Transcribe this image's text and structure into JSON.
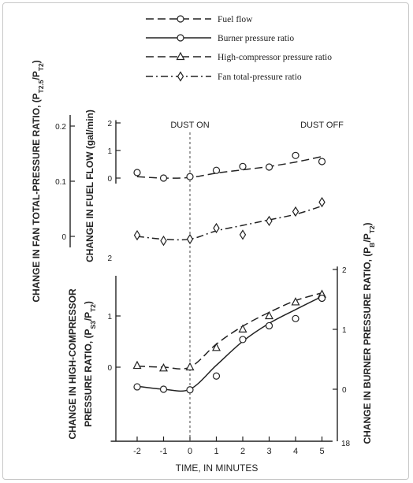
{
  "chart_data": {
    "type": "line",
    "title": "",
    "xlabel": "TIME, IN MINUTES",
    "xlim": [
      -3,
      5.4
    ],
    "x_ticks": [
      -2,
      -1,
      0,
      1,
      2,
      3,
      4,
      5
    ],
    "x_tick_labels": [
      "-2",
      "-1",
      "0",
      "1",
      "2",
      "3",
      "4",
      "5"
    ],
    "annotations": [
      {
        "text": "DUST ON",
        "x": 0
      },
      {
        "text": "DUST OFF",
        "x": 5
      }
    ],
    "legend": {
      "placement": "top",
      "entries": [
        "Fuel flow",
        "Burner pressure ratio",
        "High-compressor pressure ratio",
        "Fan total-pressure ratio"
      ]
    },
    "axes": {
      "fan": {
        "label": "CHANGE IN FAN TOTAL-PRESSURE RATIO, (P",
        "label_sub": "T2.5",
        "label_mid": "/P",
        "label_sub2": "T2",
        "label_end": ")",
        "ticks": [
          0,
          0.1,
          0.2
        ],
        "tick_labels": [
          "0",
          "0.1",
          "0.2"
        ]
      },
      "fuel": {
        "label": "CHANGE IN FUEL FLOW (gal/min)",
        "ticks": [
          0,
          1,
          2
        ],
        "tick_labels": [
          "0",
          "1",
          "2"
        ],
        "extra_label": "2"
      },
      "high_compressor": {
        "label_line1": "CHANGE IN HIGH-COMPRESSOR",
        "label_line2": "PRESSURE RATIO, (P",
        "label_sub": "S3",
        "label_mid": "/P",
        "label_sub2": "T2",
        "label_end": ")",
        "ticks": [
          0,
          1
        ],
        "tick_labels": [
          "0",
          "1"
        ]
      },
      "burner": {
        "label": "CHANGE IN BURNER PRESSURE RATIO, (P",
        "label_sub": "B",
        "label_mid": "/P",
        "label_sub2": "T2",
        "label_end": ")",
        "ticks": [
          0,
          1,
          2
        ],
        "tick_labels": [
          "0",
          "1",
          "2"
        ],
        "extra_label": "18"
      }
    },
    "series": [
      {
        "name": "Fuel flow",
        "axis": "fuel",
        "marker": "circle",
        "line": "dash",
        "curve_x": [
          -2,
          -1,
          0,
          1,
          2,
          3,
          4,
          5
        ],
        "curve_y": [
          0.05,
          0.0,
          0.02,
          0.18,
          0.3,
          0.42,
          0.58,
          0.78
        ],
        "points_x": [
          -2,
          -1,
          0,
          1,
          2,
          3,
          4,
          5
        ],
        "points_y": [
          0.2,
          0.0,
          0.05,
          0.28,
          0.42,
          0.4,
          0.82,
          0.6
        ]
      },
      {
        "name": "Fan total-pressure ratio",
        "axis": "fan",
        "marker": "diamond",
        "line": "dashdot",
        "curve_x": [
          -2,
          -1,
          0,
          1,
          2,
          3,
          4,
          5
        ],
        "curve_y": [
          0.0,
          -0.005,
          -0.005,
          0.01,
          0.02,
          0.03,
          0.04,
          0.055
        ],
        "points_x": [
          -2,
          -1,
          0,
          1,
          2,
          3,
          4,
          5
        ],
        "points_y": [
          0.002,
          -0.008,
          -0.005,
          0.015,
          0.003,
          0.028,
          0.045,
          0.062
        ]
      },
      {
        "name": "High-compressor pressure ratio",
        "axis": "high_compressor",
        "marker": "triangle",
        "line": "dash",
        "curve_x": [
          -2,
          -1,
          0,
          1,
          2,
          3,
          4,
          5
        ],
        "curve_y": [
          0.02,
          0.0,
          0.0,
          0.45,
          0.8,
          1.07,
          1.3,
          1.45
        ],
        "points_x": [
          -2,
          -1,
          0,
          1,
          2,
          3,
          4,
          5
        ],
        "points_y": [
          0.03,
          -0.02,
          0.0,
          0.38,
          0.74,
          1.0,
          1.27,
          1.42
        ]
      },
      {
        "name": "Burner pressure ratio",
        "axis": "burner",
        "marker": "circle",
        "line": "solid",
        "curve_x": [
          -2,
          -1,
          0,
          1,
          2,
          3,
          4,
          5
        ],
        "curve_y": [
          0.05,
          0.0,
          0.0,
          0.4,
          0.8,
          1.1,
          1.33,
          1.55
        ],
        "points_x": [
          -2,
          -1,
          0,
          1,
          2,
          3,
          4,
          5
        ],
        "points_y": [
          0.04,
          0.0,
          -0.01,
          0.22,
          0.83,
          1.06,
          1.18,
          1.52
        ]
      }
    ]
  }
}
